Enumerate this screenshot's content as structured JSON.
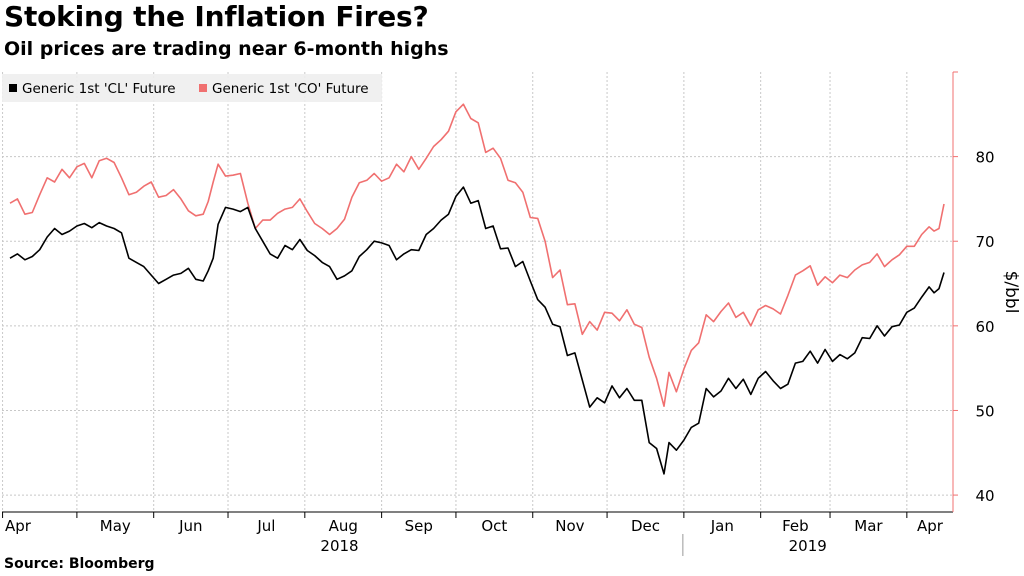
{
  "title": "Stoking the Inflation Fires?",
  "subtitle": "Oil prices are trading near 6-month highs",
  "source": "Source: Bloomberg",
  "colors": {
    "cl": "#000000",
    "co": "#f07070",
    "axis": "#f07070",
    "grid": "#c8c8c8"
  },
  "chart_data": {
    "type": "line",
    "ylabel": "$/bbl",
    "ylim": [
      38,
      90
    ],
    "yticks": [
      40,
      50,
      60,
      70,
      80
    ],
    "xlim": [
      "2018-04-04",
      "2019-04-16"
    ],
    "month_ticks": [
      {
        "label": "Apr",
        "date": "2018-04-01"
      },
      {
        "label": "May",
        "date": "2018-05-01"
      },
      {
        "label": "Jun",
        "date": "2018-06-01"
      },
      {
        "label": "Jul",
        "date": "2018-07-01"
      },
      {
        "label": "Aug",
        "date": "2018-08-01"
      },
      {
        "label": "Sep",
        "date": "2018-09-01"
      },
      {
        "label": "Oct",
        "date": "2018-10-01"
      },
      {
        "label": "Nov",
        "date": "2018-11-01"
      },
      {
        "label": "Dec",
        "date": "2018-12-01"
      },
      {
        "label": "Jan",
        "date": "2019-01-01"
      },
      {
        "label": "Feb",
        "date": "2019-02-01"
      },
      {
        "label": "Mar",
        "date": "2019-03-01"
      },
      {
        "label": "Apr",
        "date": "2019-04-01"
      }
    ],
    "year_labels": [
      {
        "label": "2018",
        "date": "2018-08-15"
      },
      {
        "label": "2019",
        "date": "2019-02-20"
      }
    ],
    "legend_position": "top-left",
    "series": [
      {
        "name": "Generic 1st 'CL' Future",
        "color": "#000000",
        "points": [
          [
            "2018-04-04",
            68.0
          ],
          [
            "2018-04-07",
            68.5
          ],
          [
            "2018-04-10",
            67.8
          ],
          [
            "2018-04-13",
            68.2
          ],
          [
            "2018-04-16",
            69.0
          ],
          [
            "2018-04-19",
            70.5
          ],
          [
            "2018-04-22",
            71.5
          ],
          [
            "2018-04-25",
            70.8
          ],
          [
            "2018-04-28",
            71.2
          ],
          [
            "2018-05-01",
            71.8
          ],
          [
            "2018-05-04",
            72.1
          ],
          [
            "2018-05-07",
            71.6
          ],
          [
            "2018-05-10",
            72.2
          ],
          [
            "2018-05-13",
            71.8
          ],
          [
            "2018-05-16",
            71.5
          ],
          [
            "2018-05-19",
            71.0
          ],
          [
            "2018-05-22",
            68.0
          ],
          [
            "2018-05-25",
            67.5
          ],
          [
            "2018-05-28",
            67.0
          ],
          [
            "2018-05-31",
            66.0
          ],
          [
            "2018-06-03",
            65.0
          ],
          [
            "2018-06-06",
            65.5
          ],
          [
            "2018-06-09",
            66.0
          ],
          [
            "2018-06-12",
            66.2
          ],
          [
            "2018-06-15",
            66.8
          ],
          [
            "2018-06-18",
            65.5
          ],
          [
            "2018-06-21",
            65.3
          ],
          [
            "2018-06-23",
            66.5
          ],
          [
            "2018-06-25",
            68.0
          ],
          [
            "2018-06-27",
            72.0
          ],
          [
            "2018-06-30",
            74.0
          ],
          [
            "2018-07-03",
            73.8
          ],
          [
            "2018-07-06",
            73.5
          ],
          [
            "2018-07-09",
            74.0
          ],
          [
            "2018-07-12",
            71.5
          ],
          [
            "2018-07-15",
            70.0
          ],
          [
            "2018-07-18",
            68.5
          ],
          [
            "2018-07-21",
            68.0
          ],
          [
            "2018-07-24",
            69.5
          ],
          [
            "2018-07-27",
            69.0
          ],
          [
            "2018-07-30",
            70.2
          ],
          [
            "2018-08-02",
            68.9
          ],
          [
            "2018-08-05",
            68.3
          ],
          [
            "2018-08-08",
            67.5
          ],
          [
            "2018-08-11",
            67.0
          ],
          [
            "2018-08-14",
            65.5
          ],
          [
            "2018-08-17",
            65.9
          ],
          [
            "2018-08-20",
            66.5
          ],
          [
            "2018-08-23",
            68.2
          ],
          [
            "2018-08-26",
            69.0
          ],
          [
            "2018-08-29",
            70.0
          ],
          [
            "2018-09-01",
            69.8
          ],
          [
            "2018-09-04",
            69.5
          ],
          [
            "2018-09-07",
            67.8
          ],
          [
            "2018-09-10",
            68.5
          ],
          [
            "2018-09-13",
            69.0
          ],
          [
            "2018-09-16",
            68.9
          ],
          [
            "2018-09-19",
            70.8
          ],
          [
            "2018-09-22",
            71.5
          ],
          [
            "2018-09-25",
            72.5
          ],
          [
            "2018-09-28",
            73.2
          ],
          [
            "2018-10-01",
            75.3
          ],
          [
            "2018-10-04",
            76.4
          ],
          [
            "2018-10-07",
            74.5
          ],
          [
            "2018-10-10",
            74.8
          ],
          [
            "2018-10-13",
            71.5
          ],
          [
            "2018-10-16",
            71.8
          ],
          [
            "2018-10-19",
            69.1
          ],
          [
            "2018-10-22",
            69.2
          ],
          [
            "2018-10-25",
            67.0
          ],
          [
            "2018-10-28",
            67.6
          ],
          [
            "2018-10-31",
            65.3
          ],
          [
            "2018-11-03",
            63.1
          ],
          [
            "2018-11-06",
            62.2
          ],
          [
            "2018-11-09",
            60.2
          ],
          [
            "2018-11-12",
            59.9
          ],
          [
            "2018-11-15",
            56.5
          ],
          [
            "2018-11-18",
            56.8
          ],
          [
            "2018-11-21",
            53.6
          ],
          [
            "2018-11-24",
            50.4
          ],
          [
            "2018-11-27",
            51.5
          ],
          [
            "2018-11-30",
            50.9
          ],
          [
            "2018-12-03",
            52.9
          ],
          [
            "2018-12-06",
            51.5
          ],
          [
            "2018-12-09",
            52.6
          ],
          [
            "2018-12-12",
            51.2
          ],
          [
            "2018-12-15",
            51.2
          ],
          [
            "2018-12-18",
            46.2
          ],
          [
            "2018-12-21",
            45.5
          ],
          [
            "2018-12-24",
            42.5
          ],
          [
            "2018-12-26",
            46.2
          ],
          [
            "2018-12-29",
            45.3
          ],
          [
            "2019-01-01",
            46.5
          ],
          [
            "2019-01-04",
            48.0
          ],
          [
            "2019-01-07",
            48.5
          ],
          [
            "2019-01-10",
            52.6
          ],
          [
            "2019-01-13",
            51.6
          ],
          [
            "2019-01-16",
            52.3
          ],
          [
            "2019-01-19",
            53.8
          ],
          [
            "2019-01-22",
            52.6
          ],
          [
            "2019-01-25",
            53.7
          ],
          [
            "2019-01-28",
            51.9
          ],
          [
            "2019-01-31",
            53.8
          ],
          [
            "2019-02-03",
            54.6
          ],
          [
            "2019-02-06",
            53.5
          ],
          [
            "2019-02-09",
            52.6
          ],
          [
            "2019-02-12",
            53.1
          ],
          [
            "2019-02-15",
            55.6
          ],
          [
            "2019-02-18",
            55.8
          ],
          [
            "2019-02-21",
            57.0
          ],
          [
            "2019-02-24",
            55.6
          ],
          [
            "2019-02-27",
            57.2
          ],
          [
            "2019-03-02",
            55.8
          ],
          [
            "2019-03-05",
            56.6
          ],
          [
            "2019-03-08",
            56.1
          ],
          [
            "2019-03-11",
            56.8
          ],
          [
            "2019-03-14",
            58.6
          ],
          [
            "2019-03-17",
            58.5
          ],
          [
            "2019-03-20",
            60.0
          ],
          [
            "2019-03-23",
            58.8
          ],
          [
            "2019-03-26",
            59.9
          ],
          [
            "2019-03-29",
            60.1
          ],
          [
            "2019-04-01",
            61.6
          ],
          [
            "2019-04-04",
            62.1
          ],
          [
            "2019-04-07",
            63.4
          ],
          [
            "2019-04-10",
            64.6
          ],
          [
            "2019-04-12",
            63.9
          ],
          [
            "2019-04-14",
            64.4
          ],
          [
            "2019-04-16",
            66.3
          ]
        ]
      },
      {
        "name": "Generic 1st 'CO' Future",
        "color": "#f07070",
        "points": [
          [
            "2018-04-04",
            74.5
          ],
          [
            "2018-04-07",
            75.0
          ],
          [
            "2018-04-10",
            73.2
          ],
          [
            "2018-04-13",
            73.4
          ],
          [
            "2018-04-16",
            75.5
          ],
          [
            "2018-04-19",
            77.5
          ],
          [
            "2018-04-22",
            77.0
          ],
          [
            "2018-04-25",
            78.5
          ],
          [
            "2018-04-28",
            77.5
          ],
          [
            "2018-05-01",
            78.8
          ],
          [
            "2018-05-04",
            79.2
          ],
          [
            "2018-05-07",
            77.5
          ],
          [
            "2018-05-10",
            79.5
          ],
          [
            "2018-05-13",
            79.8
          ],
          [
            "2018-05-16",
            79.3
          ],
          [
            "2018-05-19",
            77.5
          ],
          [
            "2018-05-22",
            75.5
          ],
          [
            "2018-05-25",
            75.8
          ],
          [
            "2018-05-28",
            76.5
          ],
          [
            "2018-05-31",
            77.0
          ],
          [
            "2018-06-03",
            75.2
          ],
          [
            "2018-06-06",
            75.4
          ],
          [
            "2018-06-09",
            76.1
          ],
          [
            "2018-06-12",
            75.0
          ],
          [
            "2018-06-15",
            73.6
          ],
          [
            "2018-06-18",
            73.0
          ],
          [
            "2018-06-21",
            73.2
          ],
          [
            "2018-06-23",
            74.7
          ],
          [
            "2018-06-25",
            77.0
          ],
          [
            "2018-06-27",
            79.1
          ],
          [
            "2018-06-30",
            77.7
          ],
          [
            "2018-07-03",
            77.8
          ],
          [
            "2018-07-06",
            78.0
          ],
          [
            "2018-07-09",
            74.5
          ],
          [
            "2018-07-12",
            71.5
          ],
          [
            "2018-07-15",
            72.5
          ],
          [
            "2018-07-18",
            72.5
          ],
          [
            "2018-07-21",
            73.3
          ],
          [
            "2018-07-24",
            73.8
          ],
          [
            "2018-07-27",
            74.0
          ],
          [
            "2018-07-30",
            75.0
          ],
          [
            "2018-08-02",
            73.5
          ],
          [
            "2018-08-05",
            72.1
          ],
          [
            "2018-08-08",
            71.5
          ],
          [
            "2018-08-11",
            70.8
          ],
          [
            "2018-08-14",
            71.5
          ],
          [
            "2018-08-17",
            72.6
          ],
          [
            "2018-08-20",
            75.2
          ],
          [
            "2018-08-23",
            76.9
          ],
          [
            "2018-08-26",
            77.2
          ],
          [
            "2018-08-29",
            78.0
          ],
          [
            "2018-09-01",
            77.1
          ],
          [
            "2018-09-04",
            77.5
          ],
          [
            "2018-09-07",
            79.1
          ],
          [
            "2018-09-10",
            78.2
          ],
          [
            "2018-09-13",
            80.0
          ],
          [
            "2018-09-16",
            78.5
          ],
          [
            "2018-09-19",
            79.8
          ],
          [
            "2018-09-22",
            81.2
          ],
          [
            "2018-09-25",
            82.0
          ],
          [
            "2018-09-28",
            83.0
          ],
          [
            "2018-10-01",
            85.3
          ],
          [
            "2018-10-04",
            86.2
          ],
          [
            "2018-10-07",
            84.5
          ],
          [
            "2018-10-10",
            84.0
          ],
          [
            "2018-10-13",
            80.5
          ],
          [
            "2018-10-16",
            81.0
          ],
          [
            "2018-10-19",
            79.8
          ],
          [
            "2018-10-22",
            77.2
          ],
          [
            "2018-10-25",
            76.9
          ],
          [
            "2018-10-28",
            75.8
          ],
          [
            "2018-10-31",
            72.8
          ],
          [
            "2018-11-03",
            72.7
          ],
          [
            "2018-11-06",
            70.0
          ],
          [
            "2018-11-09",
            65.7
          ],
          [
            "2018-11-12",
            66.6
          ],
          [
            "2018-11-15",
            62.5
          ],
          [
            "2018-11-18",
            62.6
          ],
          [
            "2018-11-21",
            59.0
          ],
          [
            "2018-11-24",
            60.5
          ],
          [
            "2018-11-27",
            59.5
          ],
          [
            "2018-11-30",
            61.6
          ],
          [
            "2018-12-03",
            61.5
          ],
          [
            "2018-12-06",
            60.6
          ],
          [
            "2018-12-09",
            61.9
          ],
          [
            "2018-12-12",
            60.2
          ],
          [
            "2018-12-15",
            59.8
          ],
          [
            "2018-12-18",
            56.3
          ],
          [
            "2018-12-21",
            53.8
          ],
          [
            "2018-12-24",
            50.5
          ],
          [
            "2018-12-26",
            54.5
          ],
          [
            "2018-12-29",
            52.2
          ],
          [
            "2019-01-01",
            54.9
          ],
          [
            "2019-01-04",
            57.1
          ],
          [
            "2019-01-07",
            58.0
          ],
          [
            "2019-01-10",
            61.3
          ],
          [
            "2019-01-13",
            60.5
          ],
          [
            "2019-01-16",
            61.7
          ],
          [
            "2019-01-19",
            62.7
          ],
          [
            "2019-01-22",
            61.0
          ],
          [
            "2019-01-25",
            61.6
          ],
          [
            "2019-01-28",
            60.0
          ],
          [
            "2019-01-31",
            61.9
          ],
          [
            "2019-02-03",
            62.4
          ],
          [
            "2019-02-06",
            62.0
          ],
          [
            "2019-02-09",
            61.4
          ],
          [
            "2019-02-12",
            63.6
          ],
          [
            "2019-02-15",
            66.0
          ],
          [
            "2019-02-18",
            66.5
          ],
          [
            "2019-02-21",
            67.1
          ],
          [
            "2019-02-24",
            64.8
          ],
          [
            "2019-02-27",
            65.8
          ],
          [
            "2019-03-02",
            65.1
          ],
          [
            "2019-03-05",
            66.0
          ],
          [
            "2019-03-08",
            65.7
          ],
          [
            "2019-03-11",
            66.6
          ],
          [
            "2019-03-14",
            67.2
          ],
          [
            "2019-03-17",
            67.5
          ],
          [
            "2019-03-20",
            68.5
          ],
          [
            "2019-03-23",
            67.0
          ],
          [
            "2019-03-26",
            67.8
          ],
          [
            "2019-03-29",
            68.4
          ],
          [
            "2019-04-01",
            69.4
          ],
          [
            "2019-04-04",
            69.4
          ],
          [
            "2019-04-07",
            70.8
          ],
          [
            "2019-04-10",
            71.7
          ],
          [
            "2019-04-12",
            71.2
          ],
          [
            "2019-04-14",
            71.5
          ],
          [
            "2019-04-16",
            74.4
          ]
        ]
      }
    ]
  }
}
